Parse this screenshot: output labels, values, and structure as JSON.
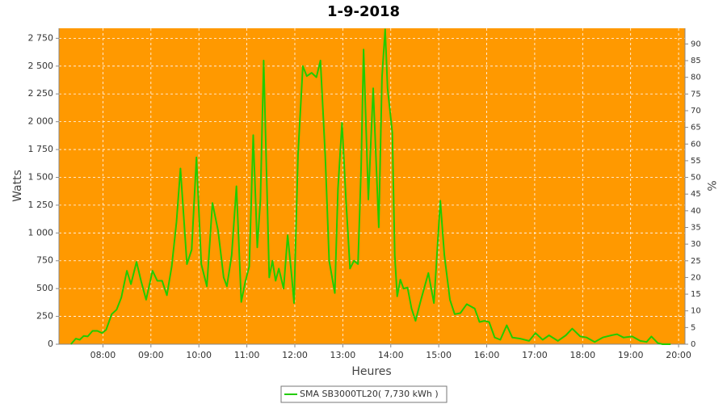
{
  "chart_data": {
    "type": "line",
    "title": "1-9-2018",
    "x_label": "Heures",
    "y_label": "Watts",
    "y2_label": "%",
    "grid": true,
    "xlim": [
      "07:05",
      "20:08"
    ],
    "xticks": [
      "08:00",
      "09:00",
      "10:00",
      "11:00",
      "12:00",
      "13:00",
      "14:00",
      "15:00",
      "16:00",
      "17:00",
      "18:00",
      "19:00",
      "20:00"
    ],
    "ylim": [
      0,
      2840
    ],
    "yticks": [
      0,
      250,
      500,
      750,
      {
        "value": 1000,
        "label": "1 000"
      },
      {
        "value": 1250,
        "label": "1 250"
      },
      {
        "value": 1500,
        "label": "1 500"
      },
      {
        "value": 1750,
        "label": "1 750"
      },
      {
        "value": 2000,
        "label": "2 000"
      },
      {
        "value": 2250,
        "label": "2 250"
      },
      {
        "value": 2500,
        "label": "2 500"
      },
      {
        "value": 2750,
        "label": "2 750"
      }
    ],
    "y2lim": [
      0,
      94.7
    ],
    "y2ticks": [
      0,
      5,
      10,
      15,
      20,
      25,
      30,
      35,
      40,
      45,
      50,
      55,
      60,
      65,
      70,
      75,
      80,
      85,
      90
    ],
    "x": [
      "07:20",
      "07:26",
      "07:31",
      "07:36",
      "07:41",
      "07:47",
      "07:53",
      "07:59",
      "08:04",
      "08:11",
      "08:17",
      "08:23",
      "08:30",
      "08:35",
      "08:42",
      "08:48",
      "08:54",
      "09:02",
      "09:08",
      "09:14",
      "09:20",
      "09:26",
      "09:32",
      "09:37",
      "09:45",
      "09:51",
      "09:57",
      "10:03",
      "10:10",
      "10:17",
      "10:24",
      "10:31",
      "10:35",
      "10:41",
      "10:47",
      "10:53",
      "10:58",
      "11:03",
      "11:08",
      "11:13",
      "11:17",
      "11:21",
      "11:28",
      "11:32",
      "11:36",
      "11:40",
      "11:46",
      "11:51",
      "11:56",
      "11:59",
      "12:04",
      "12:10",
      "12:15",
      "12:21",
      "12:27",
      "12:32",
      "12:38",
      "12:43",
      "12:50",
      "12:54",
      "12:59",
      "13:04",
      "13:09",
      "13:14",
      "13:19",
      "13:23",
      "13:26",
      "13:32",
      "13:38",
      "13:45",
      "13:49",
      "13:53",
      "13:56",
      "14:02",
      "14:05",
      "14:08",
      "14:12",
      "14:16",
      "14:21",
      "14:26",
      "14:31",
      "14:37",
      "14:47",
      "14:54",
      "15:02",
      "15:07",
      "15:14",
      "15:20",
      "15:27",
      "15:35",
      "15:45",
      "15:51",
      "15:57",
      "16:03",
      "16:10",
      "16:17",
      "16:25",
      "16:32",
      "16:42",
      "16:53",
      "17:01",
      "17:10",
      "17:18",
      "17:29",
      "17:39",
      "17:47",
      "17:57",
      "18:05",
      "18:15",
      "18:25",
      "18:36",
      "18:43",
      "18:51",
      "19:02",
      "19:12",
      "19:20",
      "19:26",
      "19:34",
      "19:40",
      "19:50"
    ],
    "series": [
      {
        "name": "SMA SB3000TL20( 7,730 kWh )",
        "color": "#22cc00",
        "values": [
          0,
          50,
          40,
          75,
          70,
          120,
          120,
          100,
          130,
          270,
          310,
          420,
          660,
          540,
          740,
          560,
          400,
          660,
          570,
          570,
          440,
          700,
          1100,
          1580,
          720,
          850,
          1680,
          720,
          520,
          1270,
          1020,
          600,
          520,
          800,
          1420,
          380,
          560,
          700,
          1880,
          870,
          1300,
          2550,
          600,
          750,
          570,
          680,
          500,
          980,
          620,
          370,
          1700,
          2500,
          2410,
          2440,
          2400,
          2550,
          1700,
          750,
          460,
          1400,
          1990,
          1300,
          680,
          750,
          720,
          1600,
          2650,
          1300,
          2300,
          1050,
          2400,
          2830,
          2300,
          1900,
          800,
          430,
          580,
          500,
          510,
          320,
          210,
          380,
          640,
          370,
          1290,
          800,
          400,
          270,
          280,
          360,
          320,
          200,
          210,
          200,
          60,
          40,
          170,
          60,
          50,
          30,
          100,
          40,
          80,
          30,
          80,
          140,
          70,
          60,
          20,
          60,
          80,
          90,
          60,
          70,
          30,
          20,
          70,
          10,
          0,
          0
        ]
      }
    ]
  }
}
